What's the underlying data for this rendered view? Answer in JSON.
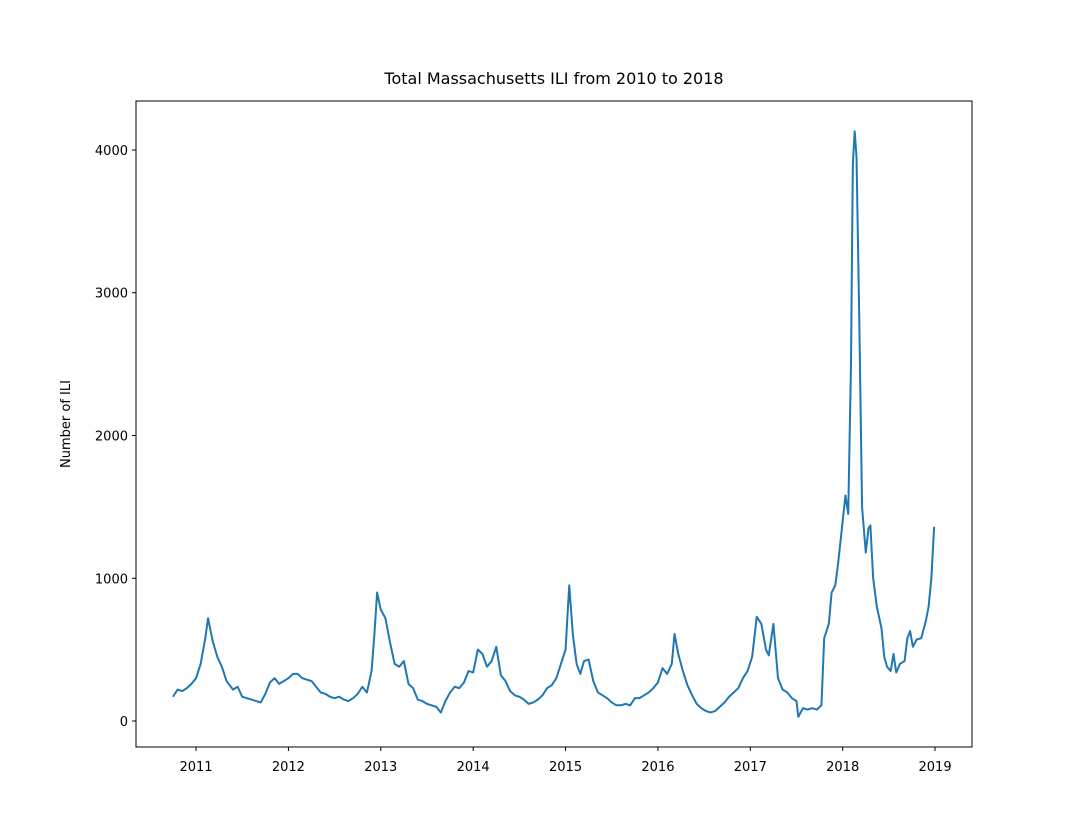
{
  "chart_data": {
    "type": "line",
    "title": "Total Massachusetts ILI from 2010 to 2018",
    "y_label": "Number of ILI",
    "color": "#1f77b4",
    "grid": false,
    "xlim": [
      2010.35,
      2019.4
    ],
    "xticks": [
      2011,
      2012,
      2013,
      2014,
      2015,
      2016,
      2017,
      2018,
      2019
    ],
    "ylim": [
      -182,
      4343
    ],
    "yticks": [
      0,
      1000,
      2000,
      3000,
      4000
    ],
    "x": [
      2010.75,
      2010.8,
      2010.85,
      2010.9,
      2010.95,
      2011,
      2011.05,
      2011.1,
      2011.13,
      2011.18,
      2011.23,
      2011.28,
      2011.33,
      2011.4,
      2011.45,
      2011.5,
      2011.55,
      2011.6,
      2011.65,
      2011.7,
      2011.75,
      2011.8,
      2011.85,
      2011.9,
      2011.95,
      2012,
      2012.05,
      2012.1,
      2012.15,
      2012.2,
      2012.25,
      2012.3,
      2012.35,
      2012.4,
      2012.45,
      2012.5,
      2012.55,
      2012.6,
      2012.65,
      2012.7,
      2012.75,
      2012.8,
      2012.85,
      2012.9,
      2012.93,
      2012.96,
      2013,
      2013.05,
      2013.1,
      2013.15,
      2013.2,
      2013.25,
      2013.3,
      2013.35,
      2013.4,
      2013.45,
      2013.5,
      2013.55,
      2013.6,
      2013.65,
      2013.7,
      2013.75,
      2013.8,
      2013.85,
      2013.9,
      2013.95,
      2014,
      2014.05,
      2014.1,
      2014.15,
      2014.2,
      2014.25,
      2014.3,
      2014.35,
      2014.4,
      2014.45,
      2014.5,
      2014.55,
      2014.6,
      2014.65,
      2014.7,
      2014.75,
      2014.8,
      2014.85,
      2014.9,
      2014.95,
      2015,
      2015.04,
      2015.08,
      2015.12,
      2015.16,
      2015.2,
      2015.25,
      2015.3,
      2015.35,
      2015.4,
      2015.45,
      2015.5,
      2015.55,
      2015.6,
      2015.65,
      2015.7,
      2015.75,
      2015.8,
      2015.85,
      2015.9,
      2015.95,
      2016,
      2016.05,
      2016.1,
      2016.15,
      2016.18,
      2016.22,
      2016.27,
      2016.32,
      2016.37,
      2016.42,
      2016.47,
      2016.52,
      2016.57,
      2016.62,
      2016.67,
      2016.72,
      2016.77,
      2016.82,
      2016.87,
      2016.92,
      2016.97,
      2017.02,
      2017.07,
      2017.12,
      2017.17,
      2017.2,
      2017.25,
      2017.3,
      2017.35,
      2017.4,
      2017.45,
      2017.5,
      2017.52,
      2017.57,
      2017.62,
      2017.67,
      2017.72,
      2017.77,
      2017.8,
      2017.85,
      2017.88,
      2017.92,
      2017.95,
      2018,
      2018.03,
      2018.06,
      2018.09,
      2018.11,
      2018.13,
      2018.15,
      2018.18,
      2018.21,
      2018.25,
      2018.28,
      2018.3,
      2018.33,
      2018.37,
      2018.42,
      2018.45,
      2018.48,
      2018.52,
      2018.55,
      2018.58,
      2018.62,
      2018.67,
      2018.7,
      2018.73,
      2018.76,
      2018.8,
      2018.85,
      2018.9,
      2018.93,
      2018.96,
      2018.99
    ],
    "values": [
      170,
      220,
      210,
      230,
      260,
      300,
      400,
      580,
      720,
      560,
      450,
      380,
      280,
      220,
      240,
      170,
      160,
      150,
      140,
      130,
      190,
      270,
      300,
      260,
      280,
      300,
      330,
      330,
      300,
      290,
      280,
      240,
      200,
      190,
      170,
      160,
      170,
      150,
      140,
      160,
      190,
      240,
      200,
      350,
      600,
      900,
      780,
      720,
      550,
      400,
      380,
      420,
      260,
      230,
      150,
      140,
      120,
      110,
      100,
      60,
      140,
      200,
      240,
      230,
      270,
      350,
      340,
      500,
      470,
      380,
      420,
      520,
      320,
      280,
      210,
      180,
      170,
      150,
      120,
      130,
      150,
      180,
      230,
      250,
      300,
      400,
      500,
      950,
      600,
      400,
      330,
      420,
      430,
      280,
      200,
      180,
      160,
      130,
      110,
      110,
      120,
      110,
      160,
      160,
      180,
      200,
      230,
      270,
      370,
      330,
      400,
      610,
      470,
      350,
      250,
      180,
      120,
      90,
      70,
      60,
      70,
      100,
      130,
      170,
      200,
      230,
      300,
      350,
      450,
      730,
      680,
      500,
      460,
      680,
      300,
      220,
      200,
      160,
      140,
      30,
      90,
      80,
      90,
      80,
      110,
      580,
      680,
      900,
      950,
      1100,
      1400,
      1580,
      1450,
      2500,
      3900,
      4130,
      3950,
      2800,
      1500,
      1180,
      1350,
      1370,
      1000,
      800,
      650,
      450,
      380,
      350,
      470,
      340,
      400,
      420,
      580,
      630,
      520,
      570,
      580,
      700,
      800,
      1000,
      1360
    ]
  }
}
